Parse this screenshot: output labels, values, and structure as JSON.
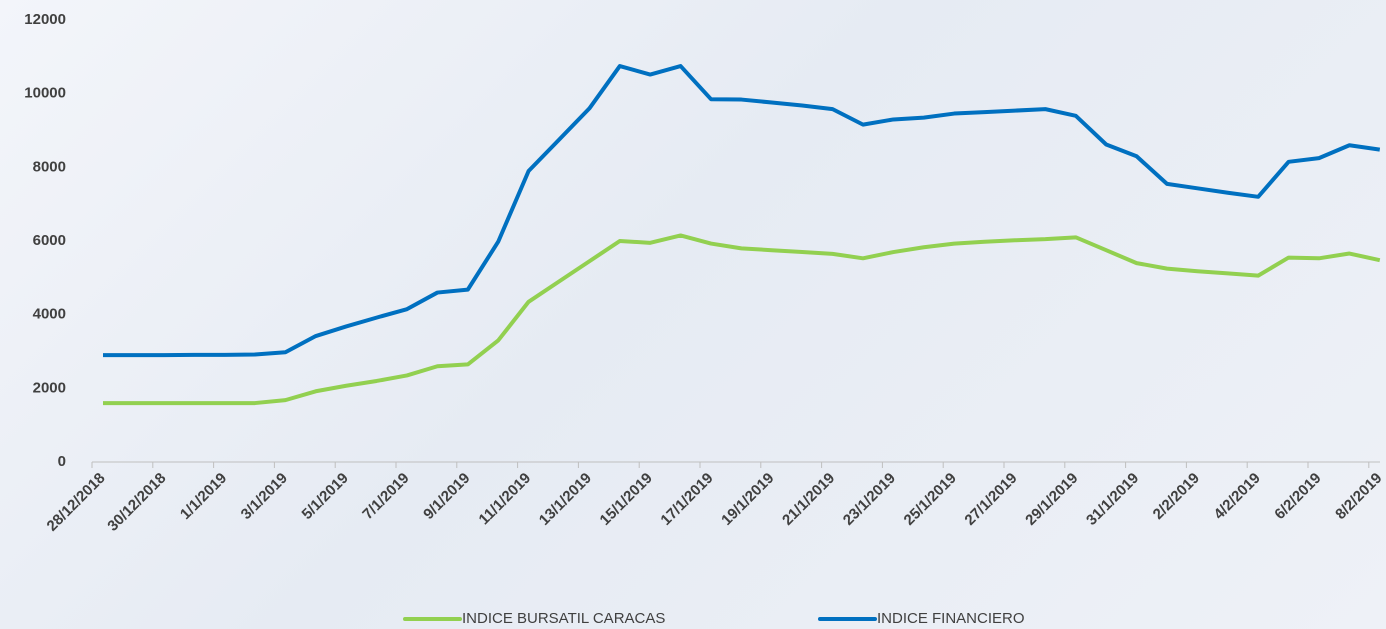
{
  "chart_data": {
    "type": "line",
    "categories": [
      "28/12/2018",
      null,
      "30/12/2018",
      null,
      "1/1/2019",
      null,
      "3/1/2019",
      null,
      "5/1/2019",
      null,
      "7/1/2019",
      null,
      "9/1/2019",
      null,
      "11/1/2019",
      null,
      "13/1/2019",
      null,
      "15/1/2019",
      null,
      "17/1/2019",
      null,
      "19/1/2019",
      null,
      "21/1/2019",
      null,
      "23/1/2019",
      null,
      "25/1/2019",
      null,
      "27/1/2019",
      null,
      "29/1/2019",
      null,
      "31/1/2019",
      null,
      "2/2/2019",
      null,
      "4/2/2019",
      null,
      "6/2/2019",
      null,
      "8/2/2019"
    ],
    "series": [
      {
        "name": "INDICE BURSATIL CARACAS",
        "color": "#92d050",
        "values": [
          1600,
          1600,
          1600,
          1600,
          1600,
          1600,
          1680,
          1920,
          2070,
          2200,
          2350,
          2600,
          2650,
          3300,
          4350,
          4900,
          5450,
          6000,
          5950,
          6150,
          5930,
          5800,
          5750,
          5700,
          5650,
          5530,
          5700,
          5830,
          5930,
          5980,
          6020,
          6050,
          6100,
          5750,
          5400,
          5250,
          5180,
          5120,
          5060,
          5550,
          5530,
          5660,
          5480
        ]
      },
      {
        "name": "INDICE FINANCIERO",
        "color": "#0070c0",
        "values": [
          2900,
          2900,
          2900,
          2910,
          2910,
          2920,
          2980,
          3420,
          3680,
          3920,
          4150,
          4600,
          4680,
          5980,
          7900,
          8750,
          9600,
          10750,
          10520,
          10750,
          9850,
          9840,
          9760,
          9680,
          9580,
          9160,
          9300,
          9350,
          9460,
          9500,
          9540,
          9580,
          9400,
          8620,
          8300,
          7550,
          7430,
          7310,
          7200,
          8150,
          8250,
          8600,
          8480
        ]
      }
    ],
    "ylim": [
      0,
      12000
    ],
    "yticks": [
      0,
      2000,
      4000,
      6000,
      8000,
      10000,
      12000
    ],
    "grid": false,
    "legend": "bottom"
  }
}
